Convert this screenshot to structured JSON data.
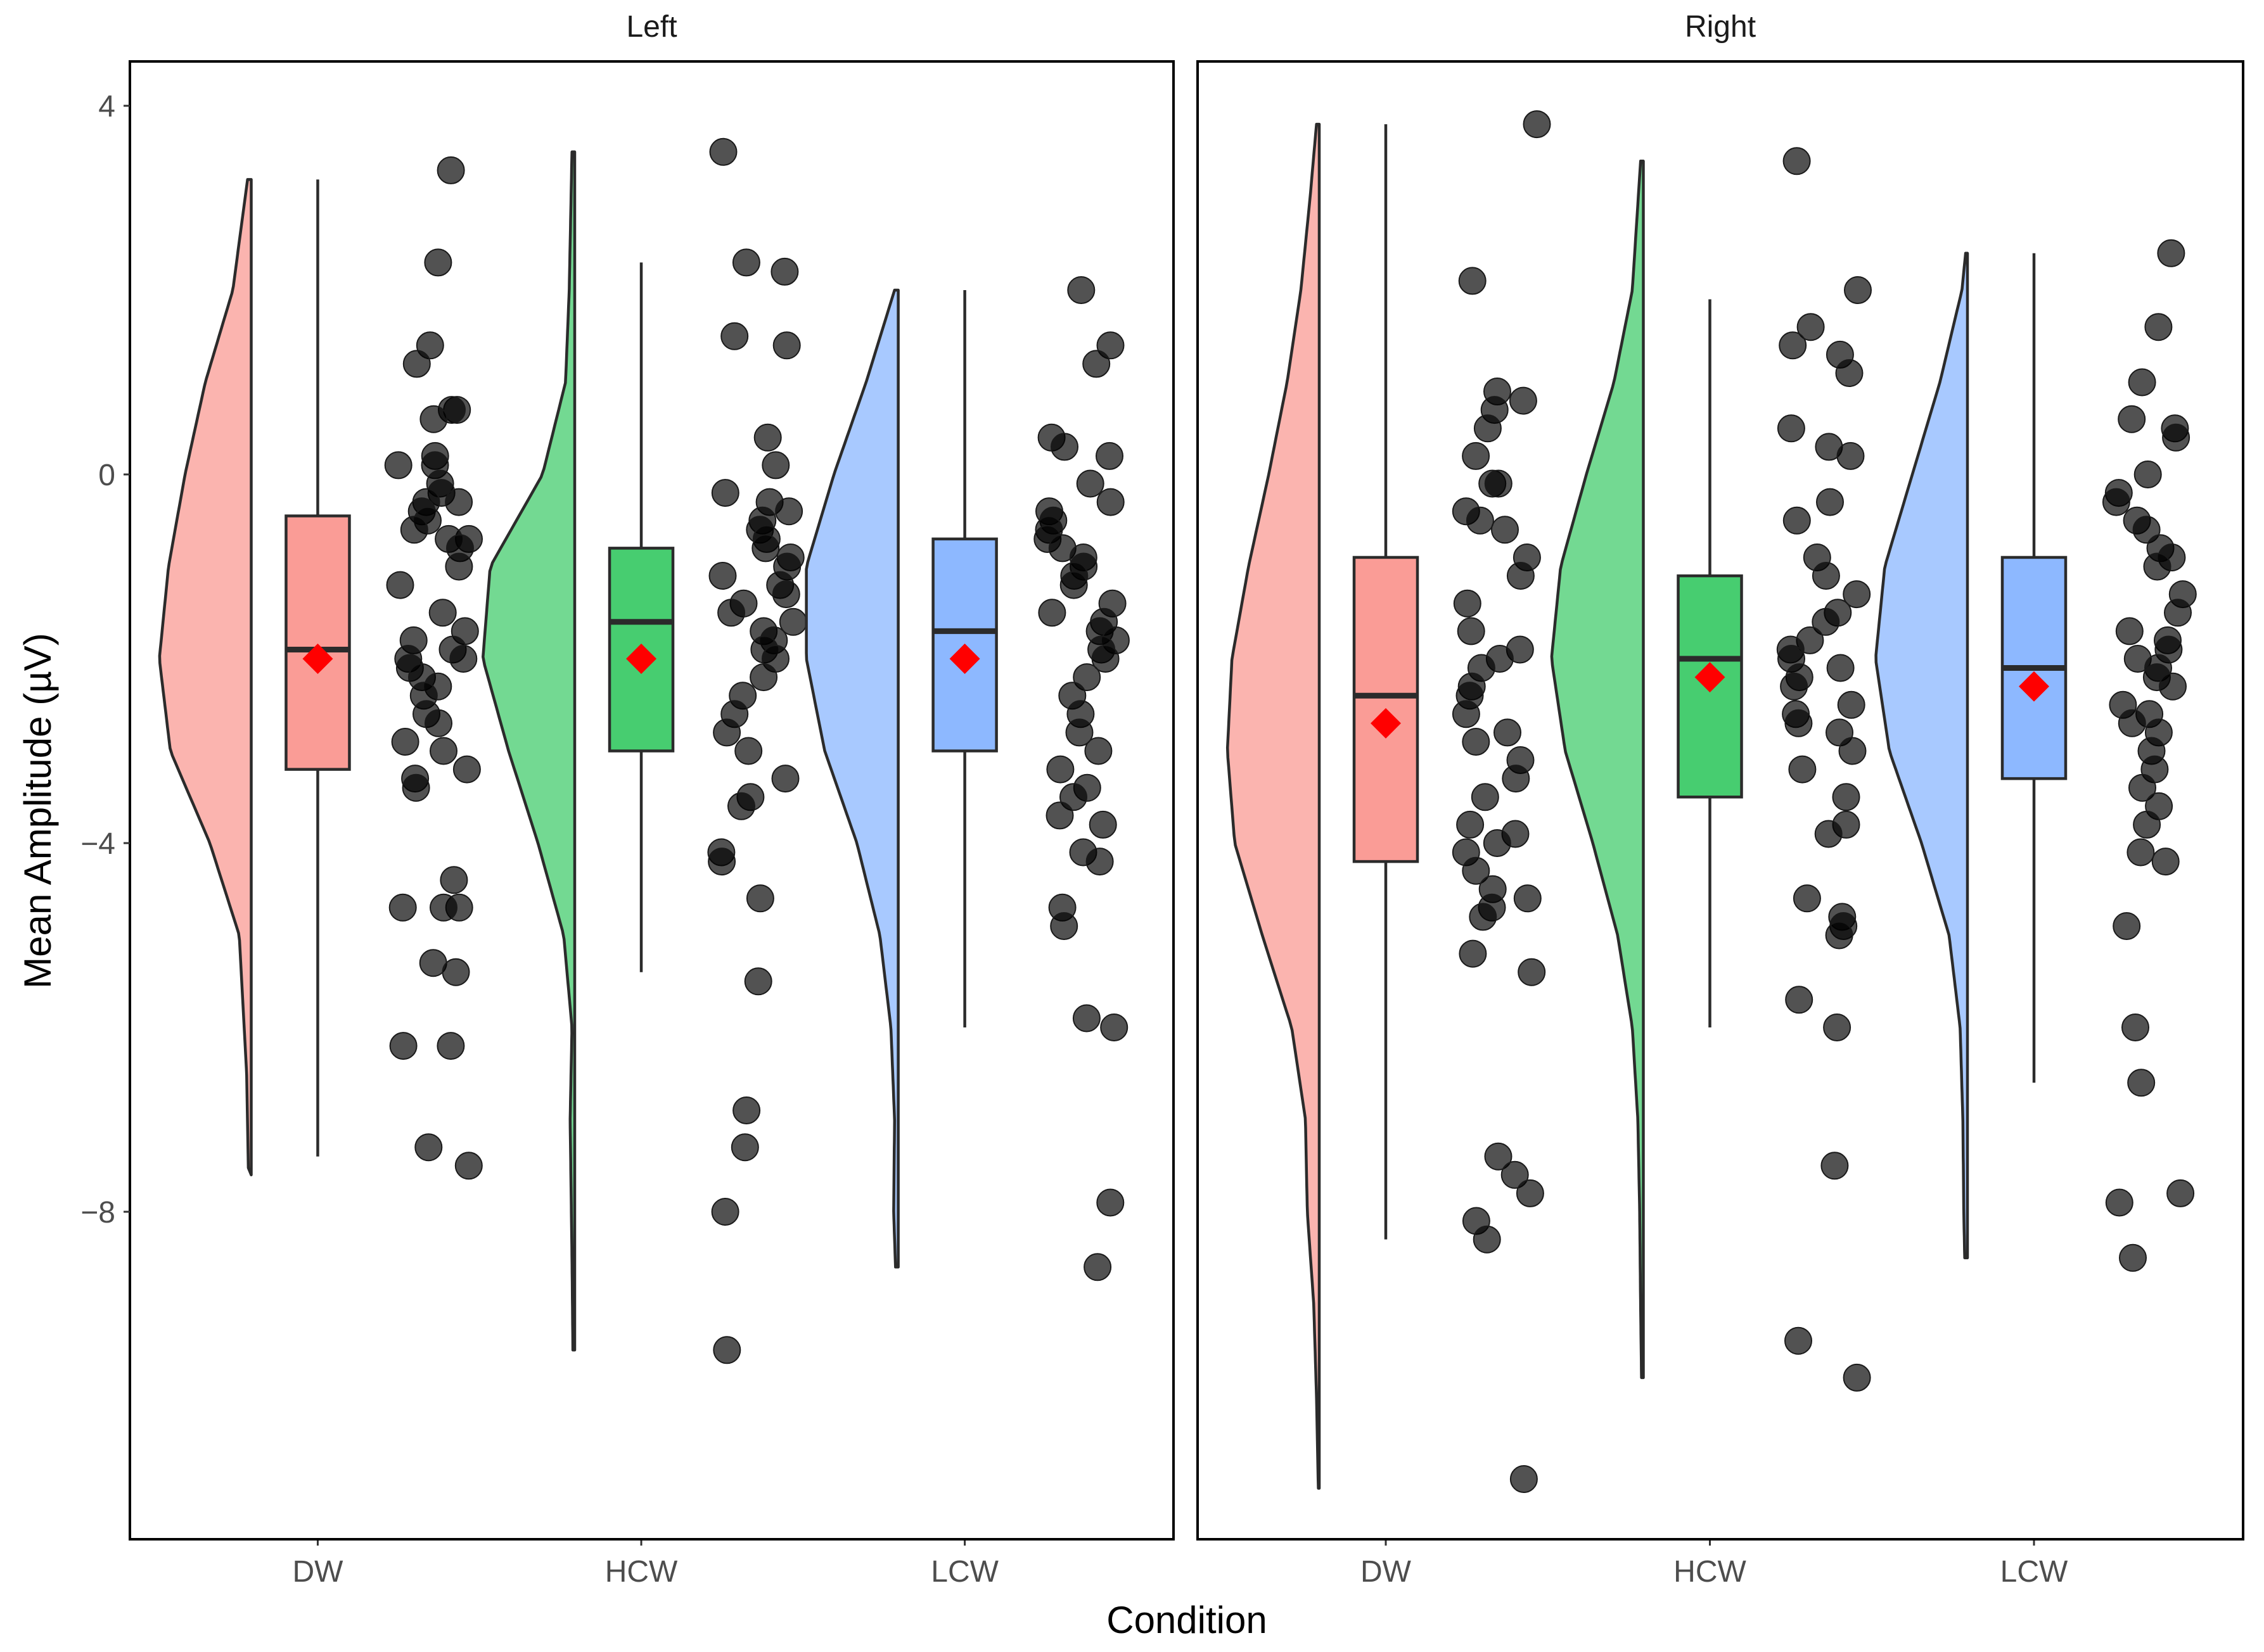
{
  "chart_data": {
    "type": "raincloud",
    "xlabel": "Condition",
    "ylabel": "Mean Amplitude (µV)",
    "ylim": [
      -11.5,
      4.5
    ],
    "yticks": [
      4,
      0,
      -4,
      -8
    ],
    "yticklabels": [
      "4",
      "0",
      "−4",
      "−8"
    ],
    "categories": [
      "DW",
      "HCW",
      "LCW"
    ],
    "colors": {
      "DW": "#F8766D",
      "HCW": "#00BA38",
      "LCW": "#619CFF"
    },
    "mean_color": "#FF0000",
    "panels": [
      {
        "label": "Left",
        "groups": [
          {
            "condition": "DW",
            "min": -7.4,
            "q1": -3.2,
            "median": -1.9,
            "q3": -0.45,
            "max": 3.2,
            "mean": -2.0,
            "density": {
              "y": [
                -7.6,
                -6.5,
                -5.0,
                -4.0,
                -3.0,
                -2.0,
                -1.0,
                0.0,
                1.0,
                2.0,
                3.2
              ],
              "w": [
                0.03,
                0.05,
                0.13,
                0.45,
                0.88,
                1.0,
                0.9,
                0.72,
                0.5,
                0.2,
                0.04
              ]
            },
            "points": [
              3.3,
              2.3,
              1.4,
              1.2,
              0.7,
              0.7,
              0.6,
              0.2,
              0.1,
              0.1,
              -0.1,
              -0.2,
              -0.3,
              -0.3,
              -0.4,
              -0.5,
              -0.6,
              -0.7,
              -0.7,
              -0.8,
              -1.0,
              -1.2,
              -1.5,
              -1.7,
              -1.8,
              -1.9,
              -2.0,
              -2.0,
              -2.1,
              -2.2,
              -2.3,
              -2.4,
              -2.6,
              -2.7,
              -2.9,
              -3.0,
              -3.2,
              -3.3,
              -3.4,
              -4.4,
              -4.7,
              -4.7,
              -4.7,
              -5.3,
              -5.4,
              -6.2,
              -6.2,
              -7.3,
              -7.5
            ]
          },
          {
            "condition": "HCW",
            "min": -5.4,
            "q1": -3.0,
            "median": -1.6,
            "q3": -0.8,
            "max": 2.3,
            "mean": -2.0,
            "density": {
              "y": [
                -9.5,
                -8.5,
                -7.0,
                -6.0,
                -5.0,
                -4.0,
                -3.0,
                -2.0,
                -1.0,
                0.0,
                1.0,
                2.0,
                3.5
              ],
              "w": [
                0.02,
                0.03,
                0.05,
                0.03,
                0.12,
                0.4,
                0.72,
                1.0,
                0.92,
                0.35,
                0.1,
                0.06,
                0.03
              ]
            },
            "points": [
              3.5,
              2.3,
              2.2,
              1.5,
              1.4,
              0.4,
              0.1,
              -0.2,
              -0.3,
              -0.4,
              -0.5,
              -0.6,
              -0.7,
              -0.8,
              -0.9,
              -1.0,
              -1.1,
              -1.2,
              -1.3,
              -1.4,
              -1.5,
              -1.6,
              -1.7,
              -1.8,
              -1.9,
              -2.0,
              -2.2,
              -2.4,
              -2.6,
              -2.8,
              -3.0,
              -3.3,
              -3.5,
              -3.6,
              -4.1,
              -4.2,
              -4.6,
              -5.5,
              -6.9,
              -7.3,
              -8.0,
              -9.5
            ]
          },
          {
            "condition": "LCW",
            "min": -6.0,
            "q1": -3.0,
            "median": -1.7,
            "q3": -0.7,
            "max": 2.0,
            "mean": -2.0,
            "density": {
              "y": [
                -8.6,
                -8.0,
                -7.0,
                -6.0,
                -5.0,
                -4.0,
                -3.0,
                -2.0,
                -1.0,
                0.0,
                1.0,
                2.0
              ],
              "w": [
                0.03,
                0.05,
                0.04,
                0.08,
                0.2,
                0.45,
                0.8,
                1.0,
                1.0,
                0.7,
                0.35,
                0.04
              ]
            },
            "points": [
              2.0,
              1.4,
              1.2,
              0.4,
              0.3,
              0.2,
              -0.1,
              -0.3,
              -0.4,
              -0.5,
              -0.6,
              -0.7,
              -0.8,
              -0.9,
              -1.0,
              -1.1,
              -1.2,
              -1.4,
              -1.5,
              -1.6,
              -1.7,
              -1.8,
              -1.9,
              -2.0,
              -2.2,
              -2.4,
              -2.6,
              -2.8,
              -3.0,
              -3.2,
              -3.4,
              -3.5,
              -3.7,
              -3.8,
              -4.1,
              -4.2,
              -4.7,
              -4.9,
              -5.9,
              -6.0,
              -7.9,
              -8.6
            ]
          }
        ]
      },
      {
        "label": "Right",
        "groups": [
          {
            "condition": "DW",
            "min": -8.3,
            "q1": -4.2,
            "median": -2.4,
            "q3": -0.9,
            "max": 3.8,
            "mean": -2.7,
            "density": {
              "y": [
                -11.0,
                -10.0,
                -9.0,
                -8.0,
                -7.0,
                -6.0,
                -5.0,
                -4.0,
                -3.0,
                -2.0,
                -1.0,
                0.0,
                1.0,
                2.0,
                3.0,
                3.8
              ],
              "w": [
                0.01,
                0.03,
                0.06,
                0.13,
                0.15,
                0.3,
                0.62,
                0.92,
                1.0,
                0.95,
                0.77,
                0.55,
                0.35,
                0.2,
                0.1,
                0.03
              ]
            },
            "points": [
              3.8,
              2.1,
              0.9,
              0.8,
              0.7,
              0.5,
              0.2,
              -0.1,
              -0.1,
              -0.4,
              -0.5,
              -0.6,
              -0.9,
              -1.1,
              -1.4,
              -1.7,
              -1.9,
              -2.0,
              -2.1,
              -2.3,
              -2.4,
              -2.6,
              -2.8,
              -2.9,
              -3.1,
              -3.3,
              -3.5,
              -3.8,
              -3.9,
              -4.0,
              -4.1,
              -4.3,
              -4.5,
              -4.6,
              -4.7,
              -4.8,
              -5.2,
              -5.4,
              -7.4,
              -7.6,
              -7.8,
              -8.1,
              -8.3,
              -10.9
            ]
          },
          {
            "condition": "HCW",
            "min": -6.0,
            "q1": -3.5,
            "median": -2.0,
            "q3": -1.1,
            "max": 1.9,
            "mean": -2.2,
            "density": {
              "y": [
                -9.8,
                -9.0,
                -8.0,
                -7.0,
                -6.0,
                -5.0,
                -4.0,
                -3.0,
                -2.0,
                -1.0,
                0.0,
                1.0,
                2.0,
                3.4
              ],
              "w": [
                0.02,
                0.03,
                0.04,
                0.06,
                0.12,
                0.28,
                0.55,
                0.85,
                1.0,
                0.9,
                0.62,
                0.32,
                0.12,
                0.03
              ]
            },
            "points": [
              3.4,
              2.0,
              1.6,
              1.4,
              1.3,
              1.1,
              0.5,
              0.3,
              0.2,
              -0.3,
              -0.5,
              -0.9,
              -1.1,
              -1.3,
              -1.5,
              -1.6,
              -1.8,
              -1.9,
              -2.0,
              -2.1,
              -2.2,
              -2.3,
              -2.5,
              -2.6,
              -2.7,
              -2.8,
              -3.0,
              -3.2,
              -3.5,
              -3.8,
              -3.9,
              -4.6,
              -4.8,
              -4.9,
              -5.0,
              -5.7,
              -6.0,
              -7.5,
              -9.4,
              -9.8
            ]
          },
          {
            "condition": "LCW",
            "min": -6.6,
            "q1": -3.3,
            "median": -2.1,
            "q3": -0.9,
            "max": 2.4,
            "mean": -2.3,
            "density": {
              "y": [
                -8.5,
                -8.0,
                -7.0,
                -6.0,
                -5.0,
                -4.0,
                -3.0,
                -2.0,
                -1.0,
                0.0,
                1.0,
                2.0,
                2.4
              ],
              "w": [
                0.03,
                0.04,
                0.05,
                0.08,
                0.2,
                0.5,
                0.85,
                1.0,
                0.9,
                0.6,
                0.3,
                0.06,
                0.02
              ]
            },
            "points": [
              2.4,
              1.6,
              1.0,
              0.6,
              0.5,
              0.4,
              0.0,
              -0.2,
              -0.3,
              -0.5,
              -0.6,
              -0.8,
              -0.9,
              -1.0,
              -1.3,
              -1.5,
              -1.7,
              -1.8,
              -1.9,
              -2.0,
              -2.1,
              -2.2,
              -2.3,
              -2.5,
              -2.6,
              -2.7,
              -2.8,
              -3.0,
              -3.2,
              -3.4,
              -3.6,
              -3.8,
              -4.1,
              -4.2,
              -4.9,
              -6.0,
              -6.6,
              -7.8,
              -7.9,
              -8.5
            ]
          }
        ]
      }
    ]
  }
}
